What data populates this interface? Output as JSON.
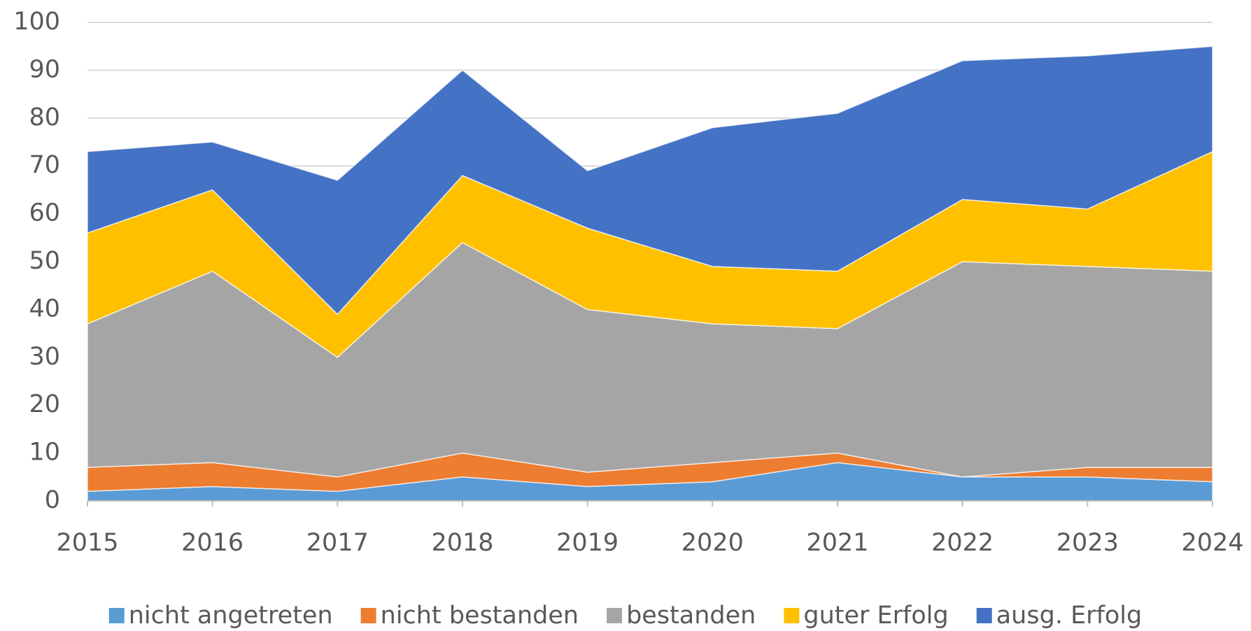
{
  "chart_data": {
    "type": "area",
    "stacked": true,
    "categories": [
      "2015",
      "2016",
      "2017",
      "2018",
      "2019",
      "2020",
      "2021",
      "2022",
      "2023",
      "2024"
    ],
    "series": [
      {
        "name": "nicht angetreten",
        "color": "#5b9bd5",
        "values": [
          2,
          3,
          2,
          5,
          3,
          4,
          8,
          5,
          5,
          4
        ]
      },
      {
        "name": "nicht bestanden",
        "color": "#ed7d31",
        "values": [
          5,
          5,
          3,
          5,
          3,
          4,
          2,
          0,
          2,
          3
        ]
      },
      {
        "name": "bestanden",
        "color": "#a5a5a5",
        "values": [
          30,
          40,
          25,
          44,
          34,
          29,
          26,
          45,
          42,
          41
        ]
      },
      {
        "name": "guter Erfolg",
        "color": "#ffc000",
        "values": [
          19,
          17,
          9,
          14,
          17,
          12,
          12,
          13,
          12,
          25
        ]
      },
      {
        "name": "ausg. Erfolg",
        "color": "#4472c4",
        "values": [
          17,
          10,
          28,
          22,
          12,
          29,
          33,
          29,
          32,
          22
        ]
      }
    ],
    "ylim": [
      0,
      100
    ],
    "yticks": [
      0,
      10,
      20,
      30,
      40,
      50,
      60,
      70,
      80,
      90,
      100
    ],
    "grid": true,
    "legend": "bottom"
  }
}
